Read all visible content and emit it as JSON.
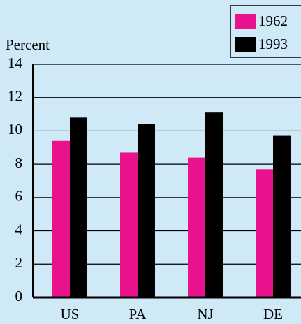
{
  "chart_data": {
    "type": "bar",
    "y_label": "Percent",
    "categories": [
      "US",
      "PA",
      "NJ",
      "DE"
    ],
    "series": [
      {
        "name": "1962",
        "color": "#e8128c",
        "values": [
          9.4,
          8.7,
          8.4,
          7.7
        ]
      },
      {
        "name": "1993",
        "color": "#000000",
        "values": [
          10.8,
          10.4,
          11.1,
          9.7
        ]
      }
    ],
    "ylim": [
      0,
      14
    ],
    "yticks": [
      0,
      2,
      4,
      6,
      8,
      10,
      12,
      14
    ],
    "grid": true,
    "legend": "top-right"
  }
}
